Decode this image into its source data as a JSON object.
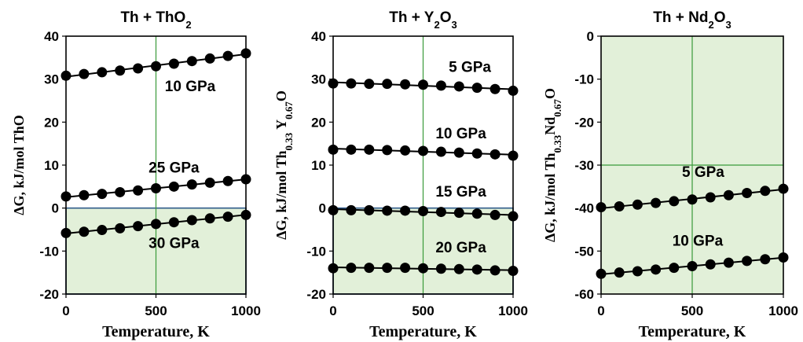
{
  "colors": {
    "shade_fill": "#e2f0d9",
    "shade_border": "#2e5a8a",
    "grid": "#3a9a3a",
    "series": "#000000"
  },
  "chart_data": [
    {
      "type": "line",
      "title": "Th + ThO₂",
      "title_parts": [
        {
          "t": "Th + ThO",
          "sub": false
        },
        {
          "t": "2",
          "sub": true
        }
      ],
      "xlabel": "Temperature, K",
      "ylabel_parts": [
        {
          "t": "ΔG, kJ/mol ThO",
          "sub": false
        }
      ],
      "xlim": [
        0,
        1000
      ],
      "ylim": [
        -20,
        40
      ],
      "xticks": [
        0,
        500,
        1000
      ],
      "yticks": [
        -20,
        -10,
        0,
        10,
        20,
        30,
        40
      ],
      "grid": "x=500 only",
      "shaded_region": {
        "ymin": -20,
        "ymax": 0
      },
      "annotations": [
        {
          "text": "10 GPa",
          "x": 690,
          "y": 28.5
        },
        {
          "text": "25 GPa",
          "x": 600,
          "y": 9.5
        },
        {
          "text": "30 GPa",
          "x": 600,
          "y": -8
        }
      ],
      "x": [
        0,
        100,
        200,
        300,
        400,
        500,
        600,
        700,
        800,
        900,
        1000
      ],
      "series": [
        {
          "name": "10 GPa",
          "values": [
            30.8,
            31.2,
            31.6,
            32.0,
            32.5,
            33.0,
            33.6,
            34.2,
            34.8,
            35.4,
            36.0
          ]
        },
        {
          "name": "25 GPa",
          "values": [
            2.7,
            3.0,
            3.3,
            3.7,
            4.1,
            4.6,
            5.0,
            5.5,
            5.9,
            6.3,
            6.7
          ]
        },
        {
          "name": "30 GPa",
          "values": [
            -5.8,
            -5.5,
            -5.1,
            -4.7,
            -4.2,
            -3.7,
            -3.3,
            -2.8,
            -2.4,
            -2.0,
            -1.6
          ]
        }
      ]
    },
    {
      "type": "line",
      "title": "Th + Y₂O₃",
      "title_parts": [
        {
          "t": "Th + Y",
          "sub": false
        },
        {
          "t": "2",
          "sub": true
        },
        {
          "t": "O",
          "sub": false
        },
        {
          "t": "3",
          "sub": true
        }
      ],
      "xlabel": "Temperature, K",
      "ylabel_parts": [
        {
          "t": "ΔG, kJ/mol Th",
          "sub": false
        },
        {
          "t": "0.33",
          "sub": true
        },
        {
          "t": " Y",
          "sub": false
        },
        {
          "t": "0.67",
          "sub": true
        },
        {
          "t": "O",
          "sub": false
        }
      ],
      "xlim": [
        0,
        1000
      ],
      "ylim": [
        -20,
        40
      ],
      "xticks": [
        0,
        500,
        1000
      ],
      "yticks": [
        -20,
        -10,
        0,
        10,
        20,
        30,
        40
      ],
      "grid": "x=500 only",
      "shaded_region": {
        "ymin": -20,
        "ymax": 0
      },
      "annotations": [
        {
          "text": "5 GPa",
          "x": 760,
          "y": 33
        },
        {
          "text": "10 GPa",
          "x": 710,
          "y": 17.5
        },
        {
          "text": "15 GPa",
          "x": 710,
          "y": 4
        },
        {
          "text": "20 GPa",
          "x": 710,
          "y": -9
        }
      ],
      "x": [
        0,
        100,
        200,
        300,
        400,
        500,
        600,
        700,
        800,
        900,
        1000
      ],
      "series": [
        {
          "name": "5 GPa",
          "values": [
            29.0,
            29.0,
            28.9,
            28.9,
            28.8,
            28.7,
            28.5,
            28.3,
            28.0,
            27.7,
            27.3
          ]
        },
        {
          "name": "10 GPa",
          "values": [
            13.6,
            13.6,
            13.6,
            13.5,
            13.4,
            13.3,
            13.1,
            12.9,
            12.7,
            12.5,
            12.2
          ]
        },
        {
          "name": "15 GPa",
          "values": [
            -0.5,
            -0.5,
            -0.5,
            -0.6,
            -0.6,
            -0.7,
            -0.9,
            -1.1,
            -1.3,
            -1.6,
            -1.9
          ]
        },
        {
          "name": "20 GPa",
          "values": [
            -14.0,
            -13.9,
            -13.9,
            -13.9,
            -13.9,
            -14.0,
            -14.1,
            -14.2,
            -14.3,
            -14.5,
            -14.6
          ]
        }
      ]
    },
    {
      "type": "line",
      "title": "Th + Nd₂O₃",
      "title_parts": [
        {
          "t": "Th + Nd",
          "sub": false
        },
        {
          "t": "2",
          "sub": true
        },
        {
          "t": "O",
          "sub": false
        },
        {
          "t": "3",
          "sub": true
        }
      ],
      "xlabel": "Temperature, K",
      "ylabel_parts": [
        {
          "t": "ΔG, kJ/mol Th",
          "sub": false
        },
        {
          "t": "0.33",
          "sub": true
        },
        {
          "t": "Nd",
          "sub": false
        },
        {
          "t": "0.67",
          "sub": true
        },
        {
          "t": "O",
          "sub": false
        }
      ],
      "xlim": [
        0,
        1000
      ],
      "ylim": [
        -60,
        0
      ],
      "xticks": [
        0,
        500,
        1000
      ],
      "yticks": [
        -60,
        -50,
        -40,
        -30,
        -20,
        -10,
        0
      ],
      "grid": "x=500 and y=-30",
      "shaded_region": {
        "ymin": -60,
        "ymax": 0
      },
      "annotations": [
        {
          "text": "5 GPa",
          "x": 560,
          "y": -31.5
        },
        {
          "text": "10 GPa",
          "x": 530,
          "y": -47.5
        }
      ],
      "x": [
        0,
        100,
        200,
        300,
        400,
        500,
        600,
        700,
        800,
        900,
        1000
      ],
      "series": [
        {
          "name": "5 GPa",
          "values": [
            -39.8,
            -39.6,
            -39.2,
            -38.8,
            -38.4,
            -38.0,
            -37.5,
            -37.0,
            -36.5,
            -36.0,
            -35.5
          ]
        },
        {
          "name": "10 GPa",
          "values": [
            -55.3,
            -55.0,
            -54.7,
            -54.3,
            -53.9,
            -53.5,
            -53.1,
            -52.7,
            -52.3,
            -51.9,
            -51.5
          ]
        }
      ]
    }
  ]
}
